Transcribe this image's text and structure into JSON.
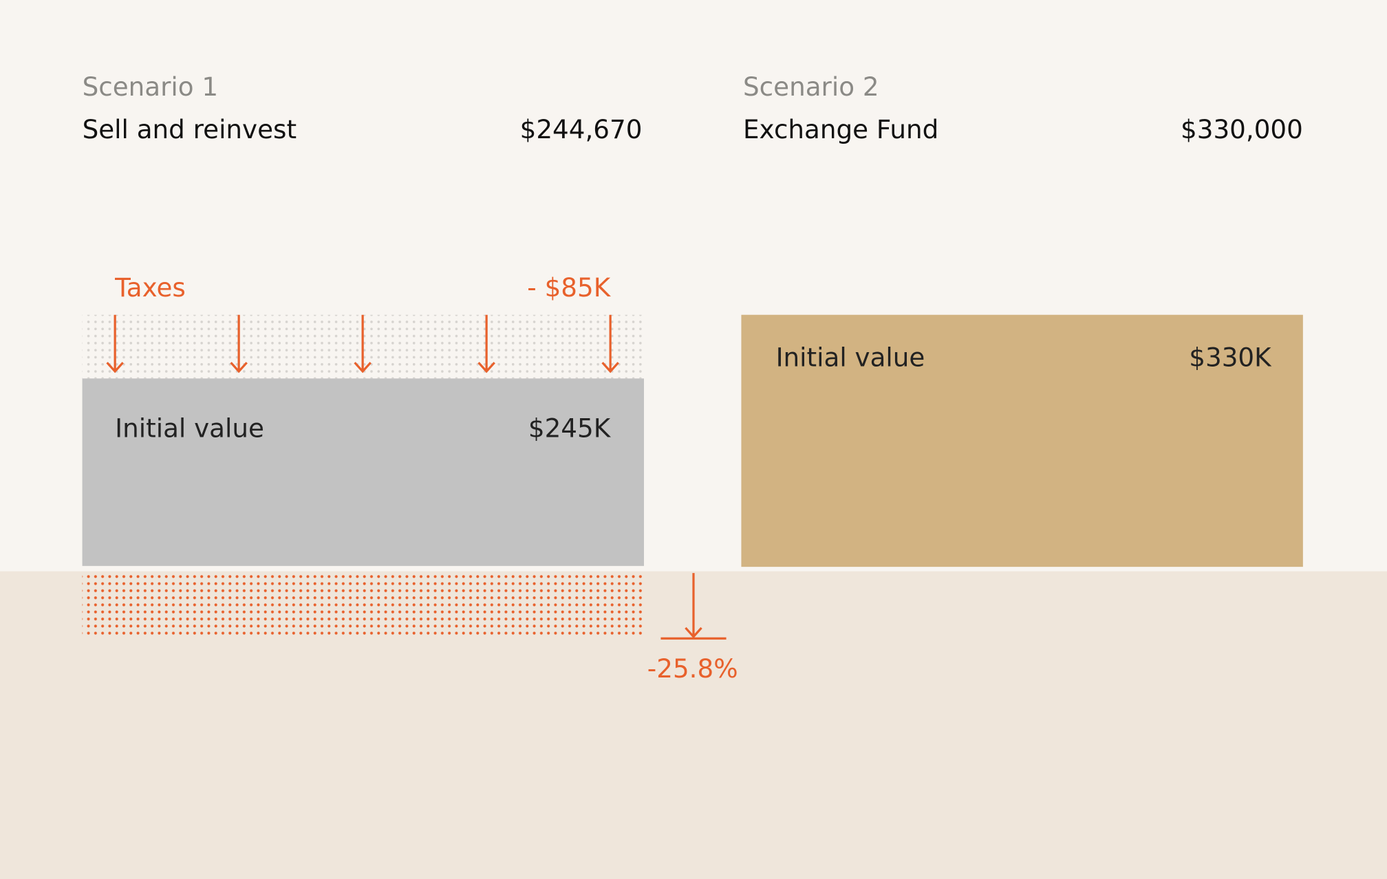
{
  "scenarios": [
    {
      "label": "Scenario 1",
      "title": "Sell and reinvest",
      "total": "$244,670",
      "taxes": {
        "label": "Taxes",
        "value": "- $85K"
      },
      "block": {
        "label": "Initial value",
        "value": "$245K"
      }
    },
    {
      "label": "Scenario 2",
      "title": "Exchange Fund",
      "total": "$330,000",
      "block": {
        "label": "Initial value",
        "value": "$330K"
      }
    }
  ],
  "change": "-25.8%"
}
